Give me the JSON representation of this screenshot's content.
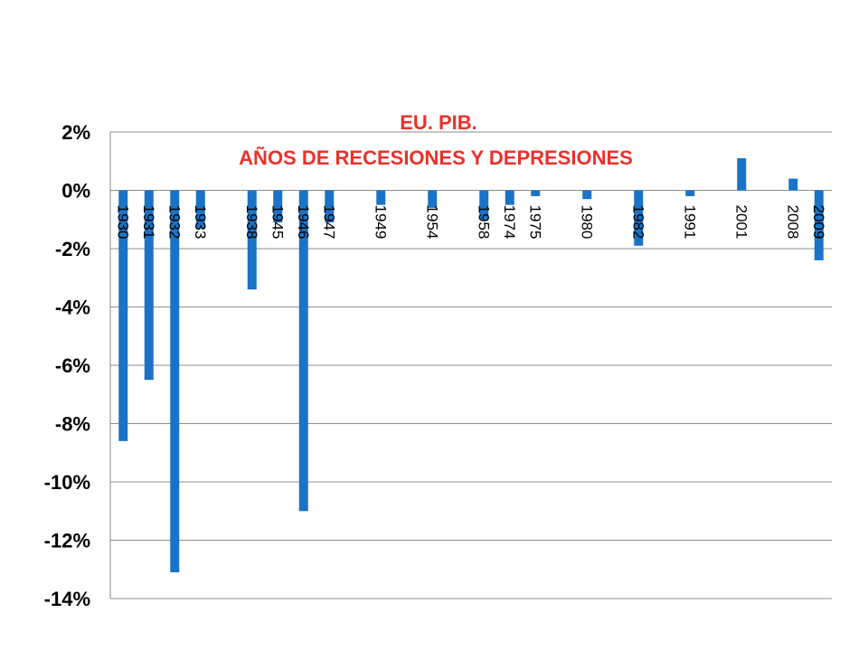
{
  "chart_data": {
    "type": "bar",
    "title": "EU. PIB.",
    "subtitle": "AÑOS DE RECESIONES Y DEPRESIONES",
    "xlabel": "",
    "ylabel": "",
    "ylim": [
      -0.14,
      0.02
    ],
    "yticks": [
      0.02,
      0,
      -0.02,
      -0.04,
      -0.06,
      -0.08,
      -0.1,
      -0.12,
      -0.14
    ],
    "ytick_labels": [
      "2%",
      "0%",
      "-2%",
      "-4%",
      "-6%",
      "-8%",
      "-10%",
      "-12%",
      "-14%"
    ],
    "grid": true,
    "legend": "none",
    "bar_color": "#1a73c6",
    "title_color": "#e8322b",
    "categories": [
      "1930",
      "1931",
      "1932",
      "1933",
      "",
      "1938",
      "1945",
      "1946",
      "1947",
      "",
      "1949",
      "",
      "1954",
      "",
      "1958",
      "1974",
      "1975",
      "",
      "1980",
      "",
      "1982",
      "",
      "1991",
      "",
      "2001",
      "",
      "2008",
      "2009"
    ],
    "values": [
      -0.086,
      -0.065,
      -0.131,
      -0.013,
      null,
      -0.034,
      -0.011,
      -0.11,
      -0.011,
      null,
      -0.005,
      null,
      -0.006,
      null,
      -0.01,
      -0.005,
      -0.002,
      null,
      -0.003,
      null,
      -0.019,
      null,
      -0.002,
      null,
      0.011,
      null,
      0.004,
      -0.024
    ]
  }
}
